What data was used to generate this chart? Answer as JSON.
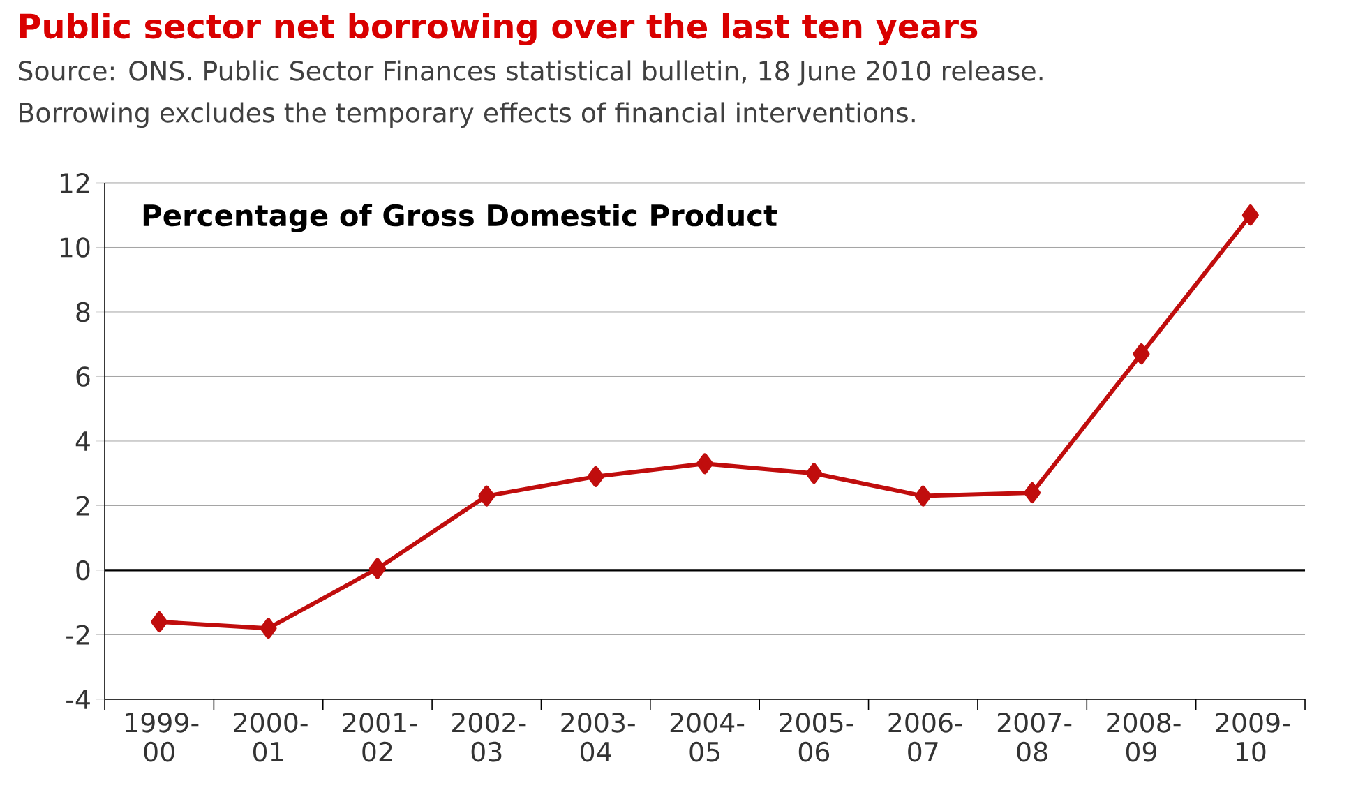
{
  "chart_data": {
    "type": "line",
    "title": "Public sector net borrowing over the last ten years",
    "subtitle": "Source: ONS. Public Sector Finances statistical bulletin, 18 June 2010 release.",
    "annotations": [
      "Borrowing excludes the temporary effects of financial interventions."
    ],
    "ylabel": "Percentage of Gross Domestic Product",
    "categories": [
      "1999-00",
      "2000-01",
      "2001-02",
      "2002-03",
      "2003-04",
      "2004-05",
      "2005-06",
      "2006-07",
      "2007-08",
      "2008-09",
      "2009-10"
    ],
    "series": [
      {
        "color": "#c00d0d",
        "values": [
          -1.6,
          -1.8,
          0.05,
          2.3,
          2.9,
          3.3,
          3.0,
          2.3,
          2.4,
          6.7,
          11.0
        ]
      }
    ],
    "ylim": [
      -4,
      12
    ],
    "yticks": [
      -4,
      -2,
      0,
      2,
      4,
      6,
      8,
      10,
      12
    ],
    "grid": "y",
    "marker": "diamond",
    "line_style": "solid",
    "ref_lines": [
      {
        "axis": "y",
        "value": 0,
        "color": "#000000"
      }
    ]
  }
}
